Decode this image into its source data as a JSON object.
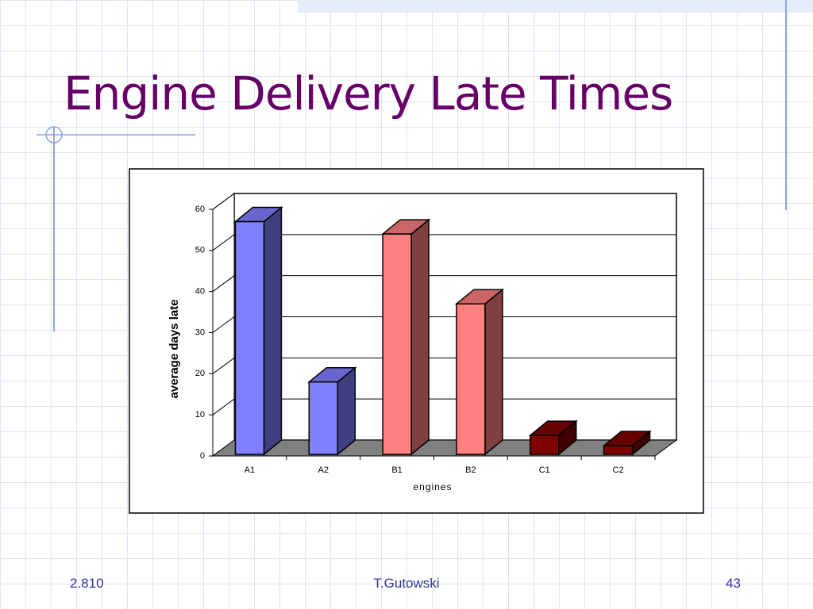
{
  "title": "Engine Delivery Late Times",
  "footer": {
    "left": "2.810",
    "center": "T.Gutowski",
    "right": "43"
  },
  "chart_data": {
    "type": "bar3d",
    "categories": [
      "A1",
      "A2",
      "B1",
      "B2",
      "C1",
      "C2"
    ],
    "values": [
      57,
      18,
      54,
      37,
      5,
      2.5
    ],
    "colors": [
      "#8080ff",
      "#8080ff",
      "#ff8080",
      "#ff8080",
      "#800000",
      "#800000"
    ],
    "ylim": [
      0,
      60
    ],
    "yticks": [
      0,
      10,
      20,
      30,
      40,
      50,
      60
    ],
    "ylabel": "average days late",
    "xlabel": "engines",
    "grid": true
  }
}
